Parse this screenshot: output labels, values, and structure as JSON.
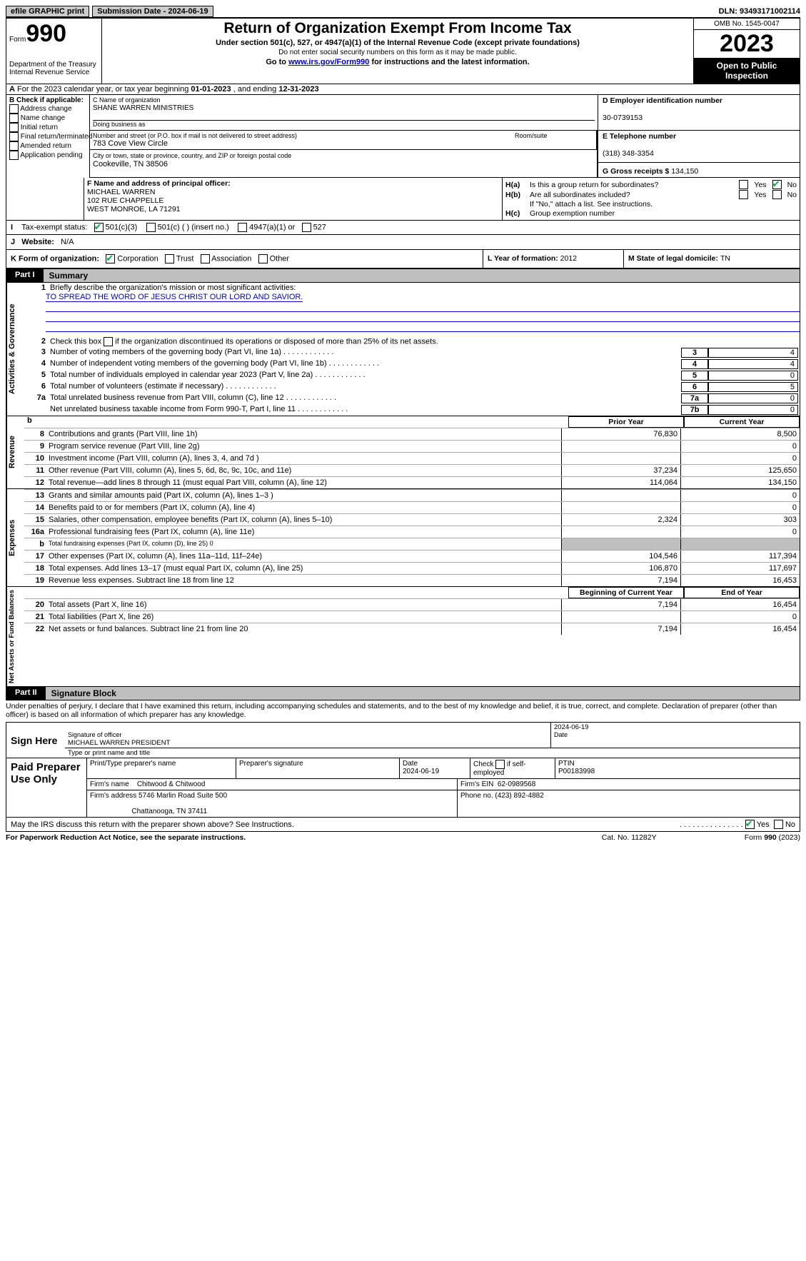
{
  "topbar": {
    "efile": "efile GRAPHIC print",
    "subdate_label": "Submission Date - ",
    "subdate": "2024-06-19",
    "dln_label": "DLN: ",
    "dln": "93493171002114"
  },
  "header": {
    "form_word": "Form",
    "form_num": "990",
    "dept": "Department of the Treasury\nInternal Revenue Service",
    "title": "Return of Organization Exempt From Income Tax",
    "sub": "Under section 501(c), 527, or 4947(a)(1) of the Internal Revenue Code (except private foundations)",
    "sub2": "Do not enter social security numbers on this form as it may be made public.",
    "sub3_pre": "Go to ",
    "sub3_link": "www.irs.gov/Form990",
    "sub3_post": " for instructions and the latest information.",
    "omb": "OMB No. 1545-0047",
    "year": "2023",
    "open": "Open to Public Inspection"
  },
  "row_a": {
    "text_pre": "For the 2023 calendar year, or tax year beginning ",
    "begin": "01-01-2023",
    "mid": " , and ending ",
    "end": "12-31-2023"
  },
  "boxB": {
    "hdr": "B Check if applicable:",
    "opts": [
      "Address change",
      "Name change",
      "Initial return",
      "Final return/terminated",
      "Amended return",
      "Application pending"
    ]
  },
  "boxC": {
    "name_lbl": "C Name of organization",
    "name": "SHANE WARREN MINISTRIES",
    "dba_lbl": "Doing business as",
    "addr_lbl": "Number and street (or P.O. box if mail is not delivered to street address)",
    "addr": "783 Cove View Circle",
    "room_lbl": "Room/suite",
    "city_lbl": "City or town, state or province, country, and ZIP or foreign postal code",
    "city": "Cookeville, TN  38506"
  },
  "boxD": {
    "lbl": "D Employer identification number",
    "val": "30-0739153"
  },
  "boxE": {
    "lbl": "E Telephone number",
    "val": "(318) 348-3354"
  },
  "boxG": {
    "lbl": "G Gross receipts $ ",
    "val": "134,150"
  },
  "boxF": {
    "lbl": "F  Name and address of principal officer:",
    "name": "MICHAEL WARREN",
    "addr1": "102 RUE CHAPPELLE",
    "addr2": "WEST MONROE, LA  71291"
  },
  "boxH": {
    "a_lbl": "Is this a group return for subordinates?",
    "b_lbl": "Are all subordinates included?",
    "b_note": "If \"No,\" attach a list. See instructions.",
    "c_lbl": "Group exemption number"
  },
  "boxI": {
    "lbl": "Tax-exempt status:",
    "o1": "501(c)(3)",
    "o2": "501(c) (  ) (insert no.)",
    "o3": "4947(a)(1) or",
    "o4": "527"
  },
  "boxJ": {
    "lbl": "Website:",
    "val": "N/A"
  },
  "boxK": {
    "lbl": "K Form of organization:",
    "o1": "Corporation",
    "o2": "Trust",
    "o3": "Association",
    "o4": "Other"
  },
  "boxL": {
    "lbl": "L Year of formation: ",
    "val": "2012"
  },
  "boxM": {
    "lbl": "M State of legal domicile: ",
    "val": "TN"
  },
  "part1": {
    "hdr": "Part I",
    "title": "Summary"
  },
  "gov": {
    "tab": "Activities & Governance",
    "l1_lbl": "Briefly describe the organization's mission or most significant activities:",
    "l1_val": "TO SPREAD THE WORD OF JESUS CHRIST OUR LORD AND SAVIOR.",
    "l2": "Check this box      if the organization discontinued its operations or disposed of more than 25% of its net assets.",
    "rows": [
      {
        "n": "3",
        "d": "Number of voting members of the governing body (Part VI, line 1a)",
        "c": "3",
        "v": "4"
      },
      {
        "n": "4",
        "d": "Number of independent voting members of the governing body (Part VI, line 1b)",
        "c": "4",
        "v": "4"
      },
      {
        "n": "5",
        "d": "Total number of individuals employed in calendar year 2023 (Part V, line 2a)",
        "c": "5",
        "v": "0"
      },
      {
        "n": "6",
        "d": "Total number of volunteers (estimate if necessary)",
        "c": "6",
        "v": "5"
      },
      {
        "n": "7a",
        "d": "Total unrelated business revenue from Part VIII, column (C), line 12",
        "c": "7a",
        "v": "0"
      },
      {
        "n": "",
        "d": "Net unrelated business taxable income from Form 990-T, Part I, line 11",
        "c": "7b",
        "v": "0"
      }
    ]
  },
  "rev": {
    "tab": "Revenue",
    "hdr_b": "b",
    "hdr_prior": "Prior Year",
    "hdr_curr": "Current Year",
    "rows": [
      {
        "n": "8",
        "d": "Contributions and grants (Part VIII, line 1h)",
        "p": "76,830",
        "c": "8,500"
      },
      {
        "n": "9",
        "d": "Program service revenue (Part VIII, line 2g)",
        "p": "",
        "c": "0"
      },
      {
        "n": "10",
        "d": "Investment income (Part VIII, column (A), lines 3, 4, and 7d )",
        "p": "",
        "c": "0"
      },
      {
        "n": "11",
        "d": "Other revenue (Part VIII, column (A), lines 5, 6d, 8c, 9c, 10c, and 11e)",
        "p": "37,234",
        "c": "125,650"
      },
      {
        "n": "12",
        "d": "Total revenue—add lines 8 through 11 (must equal Part VIII, column (A), line 12)",
        "p": "114,064",
        "c": "134,150"
      }
    ]
  },
  "exp": {
    "tab": "Expenses",
    "rows": [
      {
        "n": "13",
        "d": "Grants and similar amounts paid (Part IX, column (A), lines 1–3 )",
        "p": "",
        "c": "0"
      },
      {
        "n": "14",
        "d": "Benefits paid to or for members (Part IX, column (A), line 4)",
        "p": "",
        "c": "0"
      },
      {
        "n": "15",
        "d": "Salaries, other compensation, employee benefits (Part IX, column (A), lines 5–10)",
        "p": "2,324",
        "c": "303"
      },
      {
        "n": "16a",
        "d": "Professional fundraising fees (Part IX, column (A), line 11e)",
        "p": "",
        "c": "0"
      },
      {
        "n": "b",
        "d": "Total fundraising expenses (Part IX, column (D), line 25) 0",
        "p": "grey",
        "c": "grey",
        "small": true
      },
      {
        "n": "17",
        "d": "Other expenses (Part IX, column (A), lines 11a–11d, 11f–24e)",
        "p": "104,546",
        "c": "117,394"
      },
      {
        "n": "18",
        "d": "Total expenses. Add lines 13–17 (must equal Part IX, column (A), line 25)",
        "p": "106,870",
        "c": "117,697"
      },
      {
        "n": "19",
        "d": "Revenue less expenses. Subtract line 18 from line 12",
        "p": "7,194",
        "c": "16,453"
      }
    ]
  },
  "net": {
    "tab": "Net Assets or Fund Balances",
    "hdr_b": "Beginning of Current Year",
    "hdr_e": "End of Year",
    "rows": [
      {
        "n": "20",
        "d": "Total assets (Part X, line 16)",
        "p": "7,194",
        "c": "16,454"
      },
      {
        "n": "21",
        "d": "Total liabilities (Part X, line 26)",
        "p": "",
        "c": "0"
      },
      {
        "n": "22",
        "d": "Net assets or fund balances. Subtract line 21 from line 20",
        "p": "7,194",
        "c": "16,454"
      }
    ]
  },
  "part2": {
    "hdr": "Part II",
    "title": "Signature Block",
    "decl": "Under penalties of perjury, I declare that I have examined this return, including accompanying schedules and statements, and to the best of my knowledge and belief, it is true, correct, and complete. Declaration of preparer (other than officer) is based on all information of which preparer has any knowledge."
  },
  "sign": {
    "lbl": "Sign Here",
    "sig_of": "Signature of officer",
    "officer": "MICHAEL WARREN  PRESIDENT",
    "type_lbl": "Type or print name and title",
    "date_lbl": "Date",
    "date": "2024-06-19"
  },
  "prep": {
    "lbl": "Paid Preparer Use Only",
    "c1": "Print/Type preparer's name",
    "c2": "Preparer's signature",
    "c3": "Date",
    "c3v": "2024-06-19",
    "c4a": "Check",
    "c4b": "if self-employed",
    "c5": "PTIN",
    "c5v": "P00183998",
    "firm_lbl": "Firm's name",
    "firm": "Chitwood & Chitwood",
    "ein_lbl": "Firm's EIN",
    "ein": "62-0989568",
    "addr_lbl": "Firm's address",
    "addr1": "5746 Marlin Road Suite 500",
    "addr2": "Chattanooga, TN  37411",
    "phone_lbl": "Phone no.",
    "phone": "(423) 892-4882"
  },
  "discuss": {
    "txt": "May the IRS discuss this return with the preparer shown above? See Instructions.",
    "yes": "Yes",
    "no": "No"
  },
  "footer": {
    "l": "For Paperwork Reduction Act Notice, see the separate instructions.",
    "m": "Cat. No. 11282Y",
    "r": "Form 990 (2023)"
  }
}
